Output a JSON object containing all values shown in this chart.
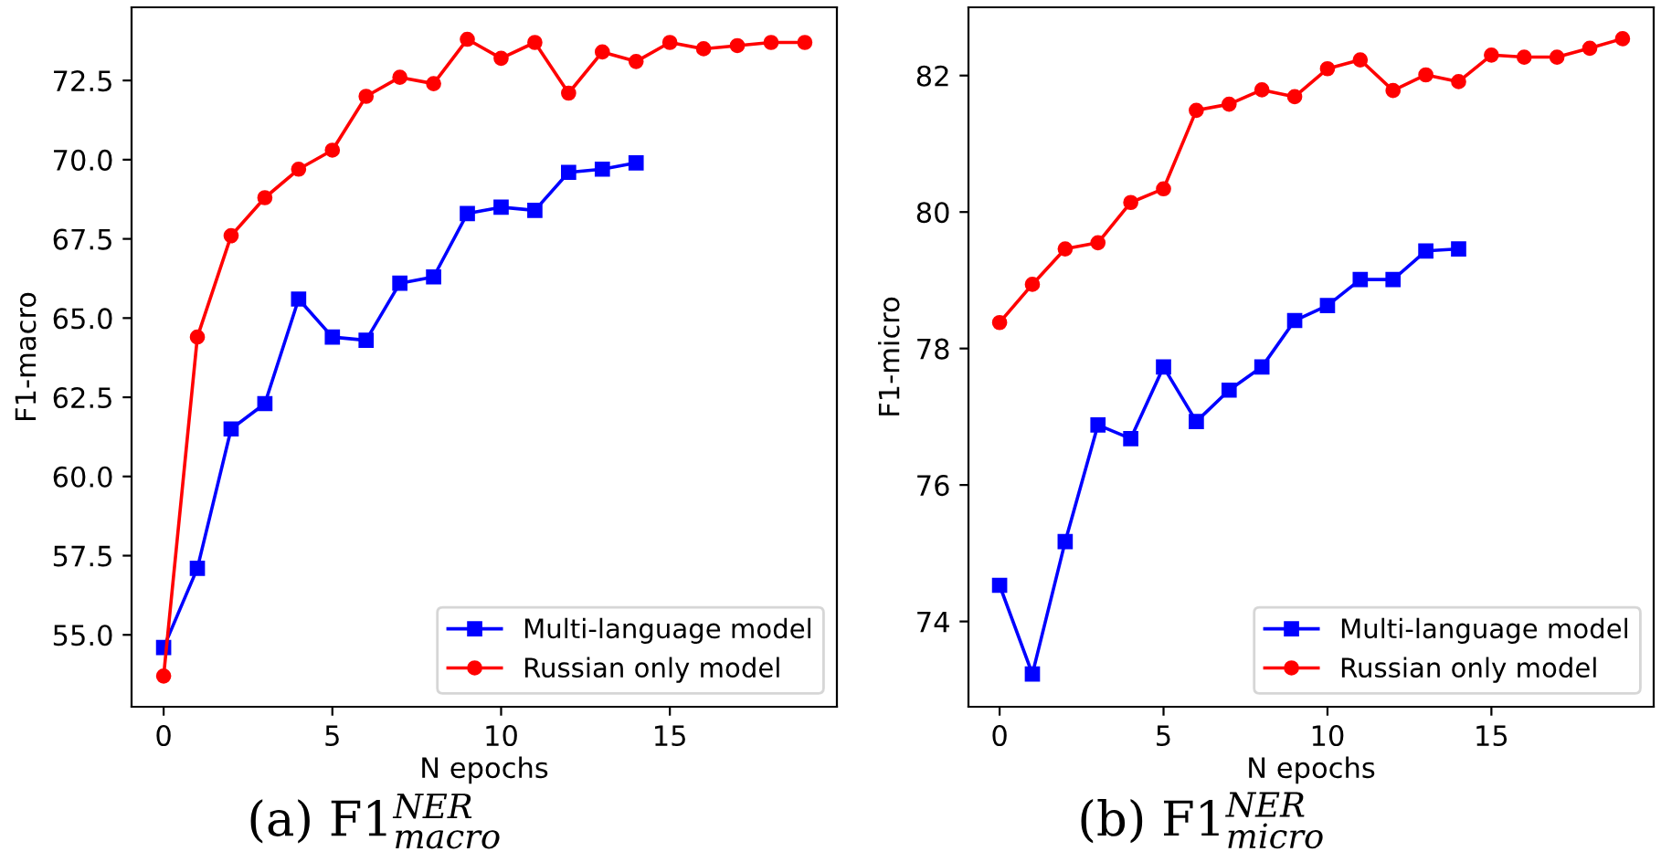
{
  "chart_data": [
    {
      "type": "line",
      "xlabel": "N epochs",
      "ylabel": "F1-macro",
      "annotations": [
        "(a) F1$^{NER}$$_{macro}$"
      ],
      "xlim": [
        -0.95,
        19.95
      ],
      "xticks": [
        0,
        5,
        10,
        15
      ],
      "ylim": [
        52.73,
        74.81
      ],
      "yticks": [
        {
          "value": 55,
          "label": "55.0"
        },
        57.5,
        {
          "value": 60,
          "label": "60.0"
        },
        62.5,
        {
          "value": 65,
          "label": "65.0"
        },
        67.5,
        {
          "value": 70,
          "label": "70.0"
        },
        72.5
      ],
      "grid": false,
      "legend": "bottom right",
      "series": [
        {
          "name": "Multi-language model",
          "color": "#0000ff",
          "marker": "square",
          "x": [
            0,
            1,
            2,
            3,
            4,
            5,
            6,
            7,
            8,
            9,
            10,
            11,
            12,
            13,
            14
          ],
          "values": [
            54.6,
            57.1,
            61.5,
            62.3,
            65.6,
            64.4,
            64.3,
            66.1,
            66.3,
            68.3,
            68.5,
            68.4,
            69.6,
            69.7,
            69.9
          ]
        },
        {
          "name": "Russian only model",
          "color": "#ff0000",
          "marker": "circle",
          "x": [
            0,
            1,
            2,
            3,
            4,
            5,
            6,
            7,
            8,
            9,
            10,
            11,
            12,
            13,
            14,
            15,
            16,
            17,
            18,
            19
          ],
          "values": [
            53.7,
            64.4,
            67.6,
            68.8,
            69.7,
            70.3,
            72.0,
            72.6,
            72.4,
            73.8,
            73.2,
            73.7,
            72.1,
            73.4,
            73.1,
            73.7,
            73.5,
            73.6,
            73.7,
            73.7
          ]
        }
      ]
    },
    {
      "type": "line",
      "xlabel": "N epochs",
      "ylabel": "F1-micro",
      "annotations": [
        "(b) F1$^{NER}$$_{micro}$"
      ],
      "xlim": [
        -0.95,
        19.95
      ],
      "xticks": [
        0,
        5,
        10,
        15
      ],
      "ylim": [
        72.75,
        83.0
      ],
      "yticks": [
        74,
        76,
        78,
        80,
        82
      ],
      "grid": false,
      "legend": "bottom right",
      "series": [
        {
          "name": "Multi-language model",
          "color": "#0000ff",
          "marker": "square",
          "x": [
            0,
            1,
            2,
            3,
            4,
            5,
            6,
            7,
            8,
            9,
            10,
            11,
            12,
            13,
            14
          ],
          "values": [
            74.53,
            73.23,
            75.17,
            76.88,
            76.68,
            77.73,
            76.93,
            77.39,
            77.73,
            78.41,
            78.63,
            79.01,
            79.01,
            79.43,
            79.46
          ]
        },
        {
          "name": "Russian only model",
          "color": "#ff0000",
          "marker": "circle",
          "x": [
            0,
            1,
            2,
            3,
            4,
            5,
            6,
            7,
            8,
            9,
            10,
            11,
            12,
            13,
            14,
            15,
            16,
            17,
            18,
            19
          ],
          "values": [
            78.38,
            78.94,
            79.46,
            79.55,
            80.14,
            80.34,
            81.49,
            81.58,
            81.79,
            81.69,
            82.1,
            82.23,
            81.78,
            82.01,
            81.91,
            82.3,
            82.27,
            82.27,
            82.4,
            82.54
          ]
        }
      ]
    }
  ]
}
